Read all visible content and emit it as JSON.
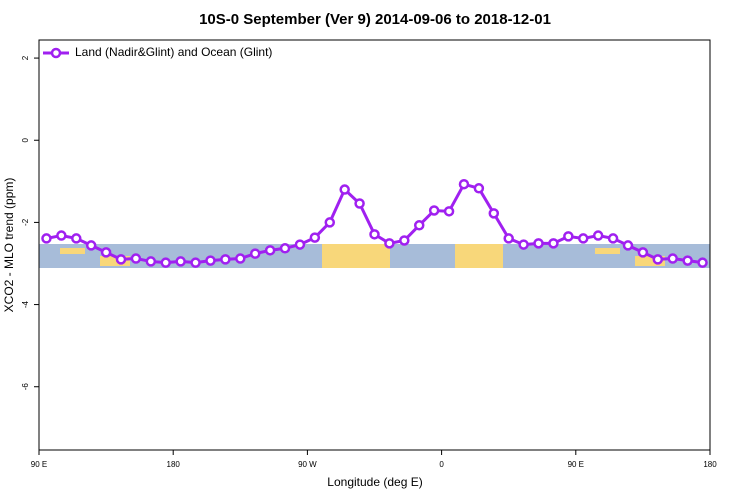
{
  "chart_data": {
    "type": "line",
    "title": "10S-0 September (Ver 9)   2014-09-06 to 2018-12-01",
    "x_label": "Longitude (deg E)",
    "y_label": "XCO2 - MLO trend (ppm)",
    "x": [
      95,
      105,
      115,
      125,
      135,
      145,
      155,
      165,
      175,
      185,
      195,
      205,
      215,
      225,
      235,
      245,
      255,
      265,
      275,
      285,
      295,
      305,
      315,
      325,
      335,
      345,
      355,
      365,
      375,
      385,
      395,
      405,
      415,
      425,
      435,
      445,
      455,
      465,
      475,
      485,
      495,
      505,
      515,
      525,
      535
    ],
    "series": [
      {
        "name": "Land (Nadir&Glint) and Ocean (Glint)",
        "color": "#a020f0",
        "values": [
          -2.39,
          -2.32,
          -2.39,
          -2.56,
          -2.73,
          -2.9,
          -2.88,
          -2.95,
          -2.98,
          -2.95,
          -2.98,
          -2.93,
          -2.9,
          -2.88,
          -2.76,
          -2.68,
          -2.63,
          -2.54,
          -2.37,
          -2.0,
          -1.2,
          -1.54,
          -2.29,
          -2.51,
          -2.44,
          -2.07,
          -1.71,
          -1.73,
          -1.07,
          -1.17,
          -1.78,
          -2.39,
          -2.54,
          -2.51,
          -2.51,
          -2.34,
          -2.39,
          -2.32,
          -2.39,
          -2.56,
          -2.73,
          -2.9,
          -2.88,
          -2.93,
          -2.98
        ]
      }
    ],
    "xlim": [
      90,
      540
    ],
    "xticks": [
      {
        "value": 90,
        "label": "90 E"
      },
      {
        "value": 180,
        "label": "180"
      },
      {
        "value": 270,
        "label": "90 W"
      },
      {
        "value": 360,
        "label": "0"
      },
      {
        "value": 450,
        "label": "90 E"
      },
      {
        "value": 540,
        "label": "180"
      }
    ],
    "ylim": [
      -7.54,
      2.44
    ],
    "yticks": [
      -6,
      -4,
      -2,
      0,
      2
    ],
    "legend": "top-left"
  }
}
